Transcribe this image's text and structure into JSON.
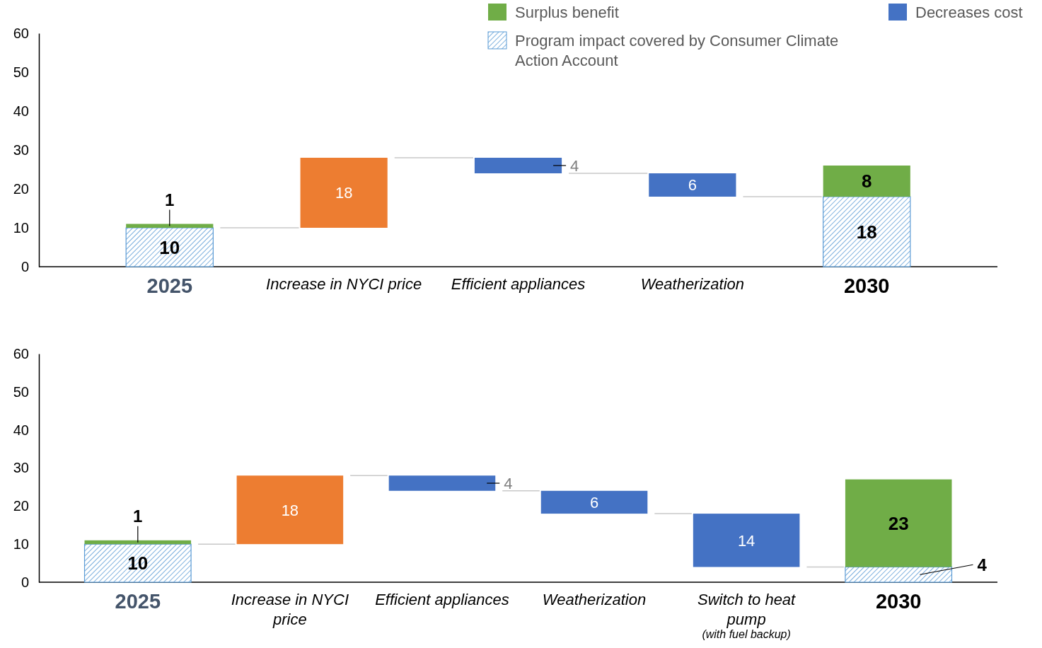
{
  "chart_data": [
    {
      "type": "bar",
      "categories": [
        "2025",
        "Increase in NYCI price",
        "Efficient appliances",
        "Weatherization",
        "2030"
      ],
      "ylim": [
        0,
        60
      ],
      "yticks": [
        0,
        10,
        20,
        30,
        40,
        50,
        60
      ],
      "grid": false,
      "legend": "top right",
      "series": [
        {
          "name": "Program impact covered by Consumer Climate Action Account",
          "color": "#5b9bd5",
          "values": [
            10,
            null,
            null,
            null,
            18
          ],
          "base": [
            0,
            null,
            null,
            null,
            0
          ],
          "value_labels": [
            "10",
            null,
            null,
            null,
            "18"
          ]
        },
        {
          "name": "Surplus benefit",
          "color": "#70ad47",
          "values": [
            1,
            null,
            null,
            null,
            8
          ],
          "base": [
            10,
            null,
            null,
            null,
            18
          ],
          "value_labels": [
            "1",
            null,
            null,
            null,
            "8"
          ]
        },
        {
          "color": "#ed7d31",
          "values": [
            null,
            18,
            null,
            null,
            null
          ],
          "base": [
            null,
            10,
            null,
            null,
            null
          ],
          "value_labels": [
            null,
            "18",
            null,
            null,
            null
          ]
        },
        {
          "name": "Decreases cost",
          "color": "#4472c4",
          "values": [
            null,
            null,
            4,
            6,
            null
          ],
          "base": [
            null,
            null,
            24,
            18,
            null
          ],
          "value_labels": [
            null,
            null,
            "4",
            "6",
            null
          ]
        }
      ]
    },
    {
      "type": "bar",
      "categories": [
        "2025",
        "Increase in NYCI price",
        "Efficient appliances",
        "Weatherization",
        "Switch to heat pump",
        "2030"
      ],
      "ylim": [
        0,
        60
      ],
      "yticks": [
        0,
        10,
        20,
        30,
        40,
        50,
        60
      ],
      "grid": false,
      "legend": false,
      "annotations": [
        "(with fuel backup)"
      ],
      "series": [
        {
          "color": "#5b9bd5",
          "values": [
            10,
            null,
            null,
            null,
            null,
            4
          ],
          "base": [
            0,
            null,
            null,
            null,
            null,
            0
          ],
          "value_labels": [
            "10",
            null,
            null,
            null,
            null,
            "4"
          ]
        },
        {
          "color": "#70ad47",
          "values": [
            1,
            null,
            null,
            null,
            null,
            23
          ],
          "base": [
            10,
            null,
            null,
            null,
            null,
            4
          ],
          "value_labels": [
            "1",
            null,
            null,
            null,
            null,
            "23"
          ]
        },
        {
          "color": "#ed7d31",
          "values": [
            null,
            18,
            null,
            null,
            null,
            null
          ],
          "base": [
            null,
            10,
            null,
            null,
            null,
            null
          ],
          "value_labels": [
            null,
            "18",
            null,
            null,
            null,
            null
          ]
        },
        {
          "color": "#4472c4",
          "values": [
            null,
            null,
            4,
            6,
            14,
            null
          ],
          "base": [
            null,
            null,
            24,
            18,
            4,
            null
          ],
          "value_labels": [
            null,
            null,
            "4",
            "6",
            "14",
            null
          ]
        }
      ]
    }
  ]
}
